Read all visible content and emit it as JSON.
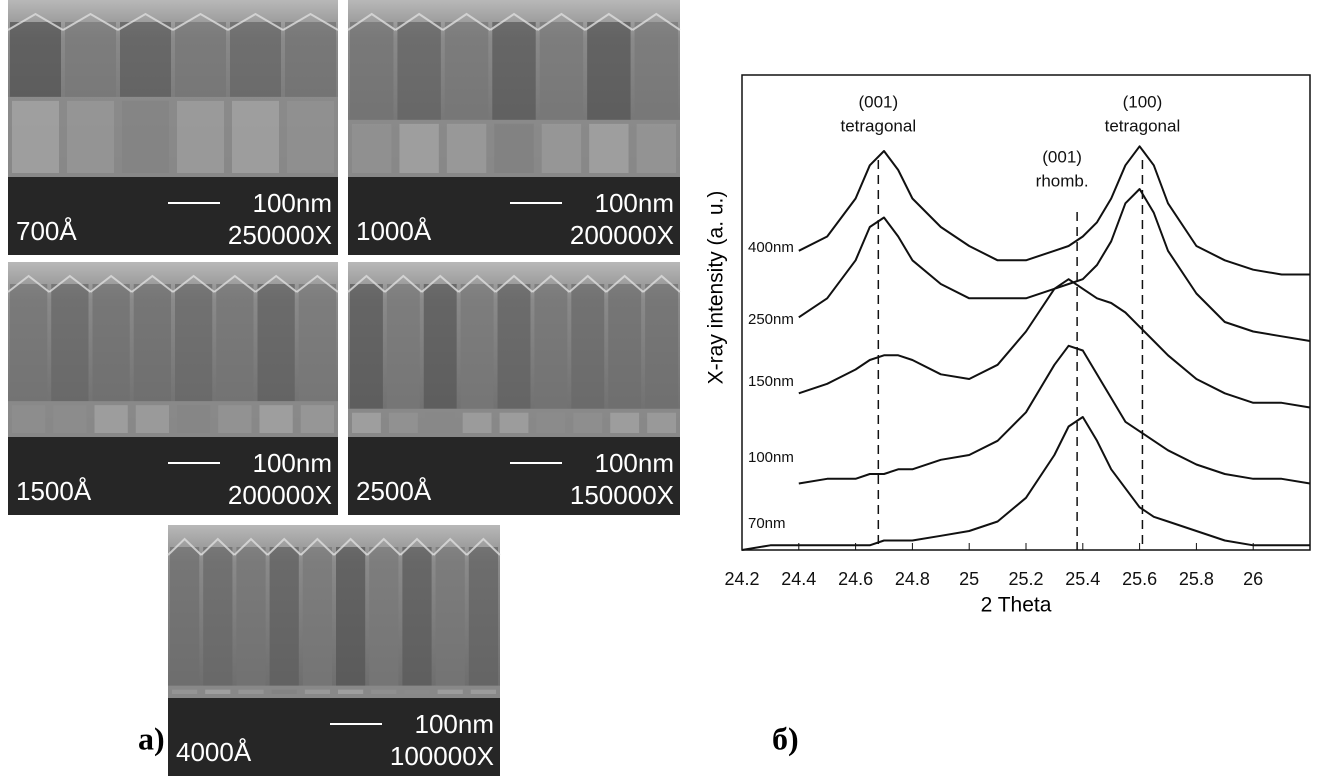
{
  "sem_images": [
    {
      "thickness": "700Å",
      "scale": "100nm",
      "magnification": "250000X"
    },
    {
      "thickness": "1000Å",
      "scale": "100nm",
      "magnification": "200000X"
    },
    {
      "thickness": "1500Å",
      "scale": "100nm",
      "magnification": "200000X"
    },
    {
      "thickness": "2500Å",
      "scale": "100nm",
      "magnification": "150000X"
    },
    {
      "thickness": "4000Å",
      "scale": "100nm",
      "magnification": "100000X"
    }
  ],
  "panel_labels": [
    "а)",
    "б)"
  ],
  "chart_data": {
    "type": "line",
    "xlabel": "2 Theta",
    "ylabel": "X-ray intensity (a. u.)",
    "x": [
      24.2,
      24.3,
      24.4,
      24.5,
      24.6,
      24.65,
      24.7,
      24.75,
      24.8,
      24.9,
      25.0,
      25.1,
      25.2,
      25.3,
      25.35,
      25.4,
      25.45,
      25.5,
      25.55,
      25.6,
      25.65,
      25.7,
      25.8,
      25.9,
      26.0,
      26.1,
      26.2
    ],
    "xlim": [
      24.2,
      26.2
    ],
    "xticks": [
      24.2,
      24.4,
      24.6,
      24.8,
      25,
      25.2,
      25.4,
      25.6,
      25.8,
      26
    ],
    "ylim": [
      0,
      10
    ],
    "series": [
      {
        "name": "400nm",
        "color": "#111111",
        "values": [
          null,
          null,
          6.3,
          6.6,
          7.4,
          8.1,
          8.4,
          8.0,
          7.4,
          6.8,
          6.4,
          6.1,
          6.1,
          6.3,
          6.4,
          6.6,
          6.9,
          7.4,
          8.1,
          8.5,
          8.1,
          7.3,
          6.4,
          6.1,
          5.9,
          5.8,
          5.8
        ]
      },
      {
        "name": "250nm",
        "color": "#111111",
        "values": [
          null,
          null,
          4.9,
          5.3,
          6.1,
          6.8,
          7.0,
          6.6,
          6.1,
          5.6,
          5.3,
          5.3,
          5.3,
          5.5,
          5.6,
          5.7,
          6.0,
          6.5,
          7.3,
          7.6,
          7.1,
          6.3,
          5.4,
          4.8,
          4.6,
          4.5,
          4.4
        ]
      },
      {
        "name": "150nm",
        "color": "#111111",
        "values": [
          null,
          null,
          3.3,
          3.5,
          3.8,
          4.0,
          4.1,
          4.1,
          4.0,
          3.7,
          3.6,
          3.9,
          4.6,
          5.5,
          5.7,
          5.5,
          5.3,
          5.2,
          5.0,
          4.7,
          4.4,
          4.1,
          3.6,
          3.3,
          3.1,
          3.1,
          3.0
        ]
      },
      {
        "name": "100nm",
        "color": "#111111",
        "values": [
          null,
          null,
          1.4,
          1.5,
          1.5,
          1.6,
          1.6,
          1.7,
          1.7,
          1.9,
          2.0,
          2.3,
          2.9,
          3.9,
          4.3,
          4.2,
          3.7,
          3.2,
          2.7,
          2.5,
          2.3,
          2.1,
          1.8,
          1.6,
          1.5,
          1.5,
          1.4
        ]
      },
      {
        "name": "70nm",
        "color": "#111111",
        "values": [
          0.0,
          0.1,
          0.1,
          0.1,
          0.1,
          0.1,
          0.2,
          0.2,
          0.2,
          0.3,
          0.4,
          0.6,
          1.1,
          2.0,
          2.6,
          2.8,
          2.3,
          1.7,
          1.3,
          0.9,
          0.7,
          0.6,
          0.4,
          0.2,
          0.1,
          0.1,
          0.1
        ]
      }
    ],
    "annotations": [
      {
        "x": 24.68,
        "lines": [
          "(001)",
          "tetragonal"
        ]
      },
      {
        "x": 25.38,
        "lines": [
          "(001)",
          "rhomb."
        ]
      },
      {
        "x": 25.61,
        "lines": [
          "(100)",
          "tetragonal"
        ]
      }
    ]
  }
}
